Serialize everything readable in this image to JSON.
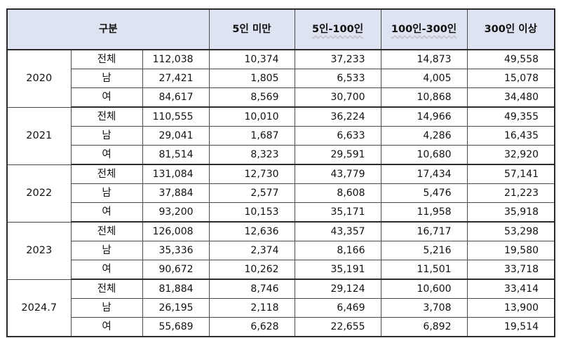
{
  "header": {
    "category": "구분",
    "col_under5": "5인 미만",
    "col_5_100": "5인-100인",
    "col_100_300": "100인-300인",
    "col_300plus": "300인 이상"
  },
  "groups": [
    {
      "year": "2020",
      "rows": [
        {
          "gender": "전체",
          "total": "112,038",
          "under5": "10,374",
          "s5_100": "37,233",
          "s100_300": "14,873",
          "s300plus": "49,558"
        },
        {
          "gender": "남",
          "total": "27,421",
          "under5": "1,805",
          "s5_100": "6,533",
          "s100_300": "4,005",
          "s300plus": "15,078"
        },
        {
          "gender": "여",
          "total": "84,617",
          "under5": "8,569",
          "s5_100": "30,700",
          "s100_300": "10,868",
          "s300plus": "34,480"
        }
      ]
    },
    {
      "year": "2021",
      "rows": [
        {
          "gender": "전체",
          "total": "110,555",
          "under5": "10,010",
          "s5_100": "36,224",
          "s100_300": "14,966",
          "s300plus": "49,355"
        },
        {
          "gender": "남",
          "total": "29,041",
          "under5": "1,687",
          "s5_100": "6,633",
          "s100_300": "4,286",
          "s300plus": "16,435"
        },
        {
          "gender": "여",
          "total": "81,514",
          "under5": "8,323",
          "s5_100": "29,591",
          "s100_300": "10,680",
          "s300plus": "32,920"
        }
      ]
    },
    {
      "year": "2022",
      "rows": [
        {
          "gender": "전체",
          "total": "131,084",
          "under5": "12,730",
          "s5_100": "43,779",
          "s100_300": "17,434",
          "s300plus": "57,141"
        },
        {
          "gender": "남",
          "total": "37,884",
          "under5": "2,577",
          "s5_100": "8,608",
          "s100_300": "5,476",
          "s300plus": "21,223"
        },
        {
          "gender": "여",
          "total": "93,200",
          "under5": "10,153",
          "s5_100": "35,171",
          "s100_300": "11,958",
          "s300plus": "35,918"
        }
      ]
    },
    {
      "year": "2023",
      "rows": [
        {
          "gender": "전체",
          "total": "126,008",
          "under5": "12,636",
          "s5_100": "43,357",
          "s100_300": "16,717",
          "s300plus": "53,298"
        },
        {
          "gender": "남",
          "total": "35,336",
          "under5": "2,374",
          "s5_100": "8,166",
          "s100_300": "5,216",
          "s300plus": "19,580"
        },
        {
          "gender": "여",
          "total": "90,672",
          "under5": "10,262",
          "s5_100": "35,191",
          "s100_300": "11,501",
          "s300plus": "33,718"
        }
      ]
    },
    {
      "year": "2024.7",
      "rows": [
        {
          "gender": "전체",
          "total": "81,884",
          "under5": "8,746",
          "s5_100": "29,124",
          "s100_300": "10,600",
          "s300plus": "33,414"
        },
        {
          "gender": "남",
          "total": "26,195",
          "under5": "2,118",
          "s5_100": "6,469",
          "s100_300": "3,708",
          "s300plus": "13,900"
        },
        {
          "gender": "여",
          "total": "55,689",
          "under5": "6,628",
          "s5_100": "22,655",
          "s100_300": "6,892",
          "s300plus": "19,514"
        }
      ]
    }
  ]
}
